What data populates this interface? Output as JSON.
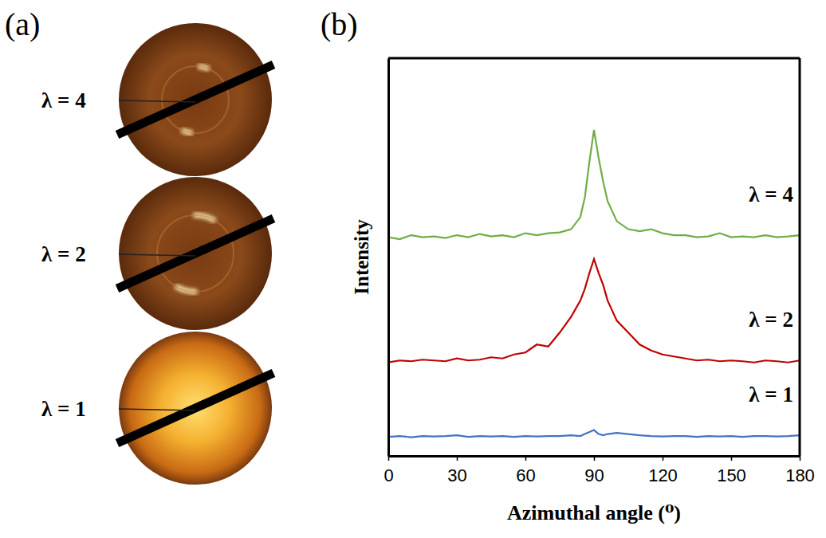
{
  "panel_labels": [
    "(a)",
    "(b)"
  ],
  "chart_data": {
    "type": "line",
    "x_label": "Azimuthal angle (⁰)",
    "y_label": "Intensity",
    "xlim": [
      0,
      180
    ],
    "xticks": [
      0,
      30,
      60,
      90,
      120,
      150,
      180
    ],
    "ylim": [
      0,
      10
    ],
    "tick_labels": "x",
    "grid": false,
    "x": [
      0,
      5,
      10,
      15,
      20,
      25,
      30,
      35,
      40,
      45,
      50,
      55,
      60,
      65,
      70,
      75,
      80,
      84,
      86,
      88,
      90,
      92,
      94,
      96,
      100,
      105,
      110,
      115,
      120,
      125,
      130,
      135,
      140,
      145,
      150,
      155,
      160,
      165,
      170,
      175,
      180
    ],
    "series": [
      {
        "name": "λ = 4",
        "color": "#70ad47",
        "values": [
          5.5,
          5.45,
          5.55,
          5.5,
          5.52,
          5.48,
          5.55,
          5.5,
          5.58,
          5.52,
          5.55,
          5.5,
          5.6,
          5.55,
          5.6,
          5.62,
          5.7,
          6.0,
          6.5,
          7.4,
          8.2,
          7.5,
          6.9,
          6.4,
          5.9,
          5.7,
          5.65,
          5.7,
          5.6,
          5.55,
          5.55,
          5.5,
          5.52,
          5.6,
          5.5,
          5.52,
          5.5,
          5.55,
          5.5,
          5.52,
          5.55
        ]
      },
      {
        "name": "λ = 2",
        "color": "#c00000",
        "values": [
          2.35,
          2.4,
          2.38,
          2.42,
          2.4,
          2.38,
          2.45,
          2.4,
          2.42,
          2.48,
          2.45,
          2.55,
          2.6,
          2.8,
          2.75,
          3.1,
          3.5,
          3.9,
          4.2,
          4.6,
          4.95,
          4.6,
          4.3,
          3.9,
          3.4,
          3.1,
          2.8,
          2.65,
          2.55,
          2.5,
          2.45,
          2.4,
          2.42,
          2.38,
          2.4,
          2.38,
          2.35,
          2.4,
          2.38,
          2.35,
          2.4
        ]
      },
      {
        "name": "λ = 1",
        "color": "#4472c4",
        "values": [
          0.48,
          0.5,
          0.47,
          0.5,
          0.49,
          0.5,
          0.52,
          0.48,
          0.5,
          0.49,
          0.5,
          0.48,
          0.5,
          0.49,
          0.5,
          0.5,
          0.52,
          0.5,
          0.55,
          0.6,
          0.65,
          0.55,
          0.52,
          0.55,
          0.58,
          0.55,
          0.52,
          0.5,
          0.49,
          0.5,
          0.5,
          0.48,
          0.5,
          0.49,
          0.5,
          0.48,
          0.5,
          0.5,
          0.49,
          0.5,
          0.52
        ]
      }
    ]
  }
}
